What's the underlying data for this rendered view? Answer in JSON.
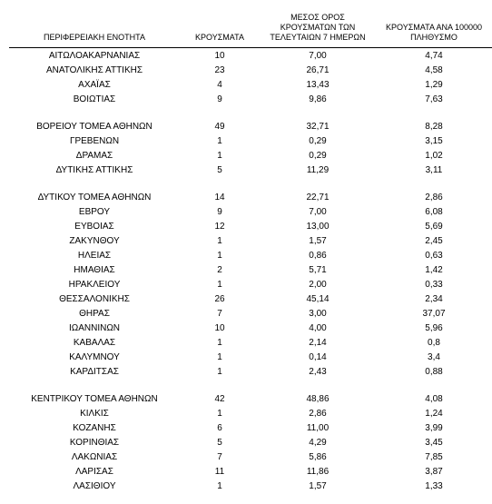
{
  "table": {
    "headers": {
      "region": "ΠΕΡΙΦΕΡΕΙΑΚΗ ΕΝΟΤΗΤΑ",
      "cases": "ΚΡΟΥΣΜΑΤΑ",
      "avg7": "ΜΕΣΟΣ ΟΡΟΣ ΚΡΟΥΣΜΑΤΩΝ ΤΩΝ ΤΕΛΕΥΤΑΙΩΝ 7 ΗΜΕΡΩΝ",
      "per100k": "ΚΡΟΥΣΜΑΤΑ ΑΝΑ 100000 ΠΛΗΘΥΣΜΟ"
    },
    "groups": [
      [
        {
          "region": "ΑΙΤΩΛΟΑΚΑΡΝΑΝΙΑΣ",
          "cases": "10",
          "avg": "7,00",
          "per": "4,74"
        },
        {
          "region": "ΑΝΑΤΟΛΙΚΗΣ ΑΤΤΙΚΗΣ",
          "cases": "23",
          "avg": "26,71",
          "per": "4,58"
        },
        {
          "region": "ΑΧΑΪΑΣ",
          "cases": "4",
          "avg": "13,43",
          "per": "1,29"
        },
        {
          "region": "ΒΟΙΩΤΙΑΣ",
          "cases": "9",
          "avg": "9,86",
          "per": "7,63"
        }
      ],
      [
        {
          "region": "ΒΟΡΕΙΟΥ ΤΟΜΕΑ ΑΘΗΝΩΝ",
          "cases": "49",
          "avg": "32,71",
          "per": "8,28"
        },
        {
          "region": "ΓΡΕΒΕΝΩΝ",
          "cases": "1",
          "avg": "0,29",
          "per": "3,15"
        },
        {
          "region": "ΔΡΑΜΑΣ",
          "cases": "1",
          "avg": "0,29",
          "per": "1,02"
        },
        {
          "region": "ΔΥΤΙΚΗΣ ΑΤΤΙΚΗΣ",
          "cases": "5",
          "avg": "11,29",
          "per": "3,11"
        }
      ],
      [
        {
          "region": "ΔΥΤΙΚΟΥ ΤΟΜΕΑ ΑΘΗΝΩΝ",
          "cases": "14",
          "avg": "22,71",
          "per": "2,86"
        },
        {
          "region": "ΕΒΡΟΥ",
          "cases": "9",
          "avg": "7,00",
          "per": "6,08"
        },
        {
          "region": "ΕΥΒΟΙΑΣ",
          "cases": "12",
          "avg": "13,00",
          "per": "5,69"
        },
        {
          "region": "ΖΑΚΥΝΘΟΥ",
          "cases": "1",
          "avg": "1,57",
          "per": "2,45"
        },
        {
          "region": "ΗΛΕΙΑΣ",
          "cases": "1",
          "avg": "0,86",
          "per": "0,63"
        },
        {
          "region": "ΗΜΑΘΙΑΣ",
          "cases": "2",
          "avg": "5,71",
          "per": "1,42"
        },
        {
          "region": "ΗΡΑΚΛΕΙΟΥ",
          "cases": "1",
          "avg": "2,00",
          "per": "0,33"
        },
        {
          "region": "ΘΕΣΣΑΛΟΝΙΚΗΣ",
          "cases": "26",
          "avg": "45,14",
          "per": "2,34"
        },
        {
          "region": "ΘΗΡΑΣ",
          "cases": "7",
          "avg": "3,00",
          "per": "37,07"
        },
        {
          "region": "ΙΩΑΝΝΙΝΩΝ",
          "cases": "10",
          "avg": "4,00",
          "per": "5,96"
        },
        {
          "region": "ΚΑΒΑΛΑΣ",
          "cases": "1",
          "avg": "2,14",
          "per": "0,8"
        },
        {
          "region": "ΚΑΛΥΜΝΟΥ",
          "cases": "1",
          "avg": "0,14",
          "per": "3,4"
        },
        {
          "region": "ΚΑΡΔΙΤΣΑΣ",
          "cases": "1",
          "avg": "2,43",
          "per": "0,88"
        }
      ],
      [
        {
          "region": "ΚΕΝΤΡΙΚΟΥ ΤΟΜΕΑ ΑΘΗΝΩΝ",
          "cases": "42",
          "avg": "48,86",
          "per": "4,08"
        },
        {
          "region": "ΚΙΛΚΙΣ",
          "cases": "1",
          "avg": "2,86",
          "per": "1,24"
        },
        {
          "region": "ΚΟΖΑΝΗΣ",
          "cases": "6",
          "avg": "11,00",
          "per": "3,99"
        },
        {
          "region": "ΚΟΡΙΝΘΙΑΣ",
          "cases": "5",
          "avg": "4,29",
          "per": "3,45"
        },
        {
          "region": "ΛΑΚΩΝΙΑΣ",
          "cases": "7",
          "avg": "5,86",
          "per": "7,85"
        },
        {
          "region": "ΛΑΡΙΣΑΣ",
          "cases": "11",
          "avg": "11,86",
          "per": "3,87"
        },
        {
          "region": "ΛΑΣΙΘΙΟΥ",
          "cases": "1",
          "avg": "1,57",
          "per": "1,33"
        }
      ]
    ]
  }
}
